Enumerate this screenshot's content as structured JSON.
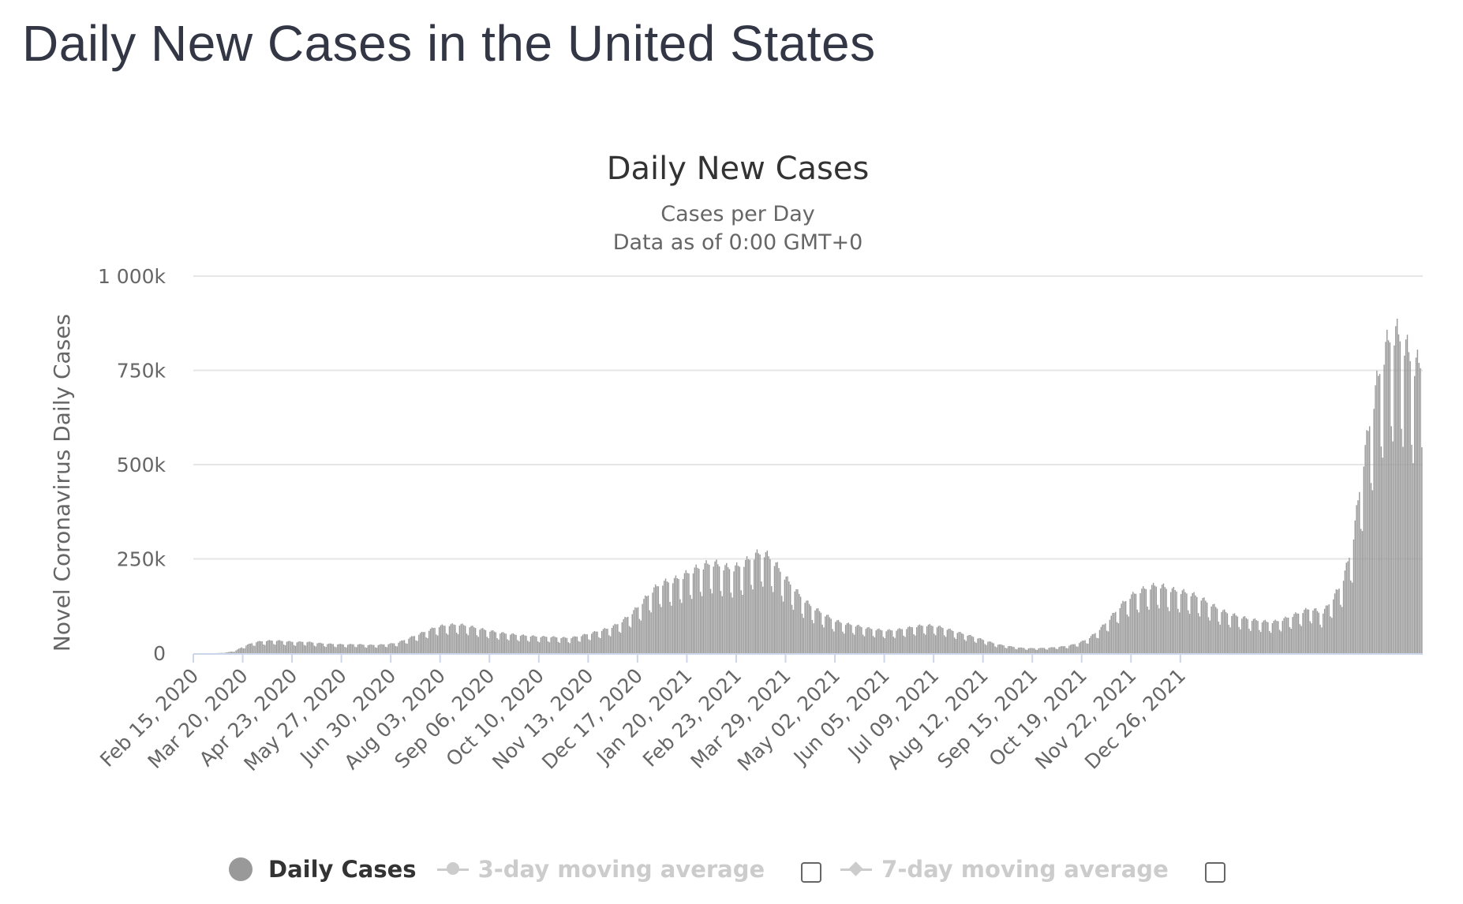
{
  "page": {
    "title": "Daily New Cases in the United States"
  },
  "legend": {
    "items": [
      {
        "label": "Daily Cases",
        "active": true,
        "icon": "circle-icon"
      },
      {
        "label": "3-day moving average",
        "active": false,
        "icon": "line-circle-icon",
        "checkbox": false
      },
      {
        "label": "7-day moving average",
        "active": false,
        "icon": "line-diamond-icon",
        "checkbox": false
      }
    ]
  },
  "colors": {
    "bar": "#999999",
    "gridline": "#e6e6e6",
    "axis_line": "#ccd6eb",
    "inactive_legend": "#cccccc"
  },
  "chart_data": {
    "type": "bar",
    "title": "Daily New Cases",
    "subtitle": [
      "Cases per Day",
      "Data as of 0:00 GMT+0"
    ],
    "xlabel": "",
    "ylabel": "Novel Coronavirus Daily Cases",
    "ylim": [
      0,
      1000000
    ],
    "yticks": [
      0,
      250000,
      500000,
      750000,
      1000000
    ],
    "ytick_labels": [
      "0",
      "250k",
      "500k",
      "750k",
      "1 000k"
    ],
    "grid": true,
    "legend_position": "bottom-center",
    "x_start_date": "Feb 15, 2020",
    "x_tick_labels": [
      "Feb 15, 2020",
      "Mar 20, 2020",
      "Apr 23, 2020",
      "May 27, 2020",
      "Jun 30, 2020",
      "Aug 03, 2020",
      "Sep 06, 2020",
      "Oct 10, 2020",
      "Nov 13, 2020",
      "Dec 17, 2020",
      "Jan 20, 2021",
      "Feb 23, 2021",
      "Mar 29, 2021",
      "May 02, 2021",
      "Jun 05, 2021",
      "Jul 09, 2021",
      "Aug 12, 2021",
      "Sep 15, 2021",
      "Oct 19, 2021",
      "Nov 22, 2021",
      "Dec 26, 2021"
    ],
    "x_tick_interval_days": 34,
    "series": [
      {
        "name": "Daily Cases",
        "unit": "cases (thousands), one value per day starting Feb 15, 2020",
        "weekly_values_k": [
          0,
          0,
          0,
          1,
          5,
          18,
          27,
          30,
          31,
          29,
          27,
          28,
          25,
          23,
          22,
          21,
          22,
          20,
          20,
          22,
          25,
          35,
          45,
          55,
          65,
          68,
          70,
          66,
          60,
          55,
          50,
          47,
          44,
          42,
          40,
          40,
          38,
          37,
          42,
          48,
          55,
          62,
          75,
          95,
          120,
          150,
          170,
          175,
          185,
          200,
          210,
          220,
          210,
          205,
          215,
          235,
          245,
          225,
          190,
          160,
          130,
          110,
          95,
          80,
          72,
          68,
          62,
          58,
          55,
          56,
          60,
          65,
          68,
          66,
          60,
          52,
          45,
          38,
          30,
          22,
          18,
          14,
          12,
          12,
          13,
          15,
          18,
          24,
          35,
          55,
          80,
          110,
          135,
          150,
          160,
          165,
          155,
          150,
          145,
          135,
          120,
          105,
          95,
          88,
          82,
          78,
          75,
          80,
          90,
          100,
          110,
          95,
          130,
          170,
          260,
          450,
          600,
          720,
          780,
          760,
          700
        ],
        "weekly_pattern": [
          0.72,
          1.05,
          1.12,
          1.15,
          1.1,
          1.08,
          0.78
        ],
        "peak_values_k": {
          "Jan 2021": 300,
          "Jan 2022 max": 890
        }
      }
    ]
  }
}
